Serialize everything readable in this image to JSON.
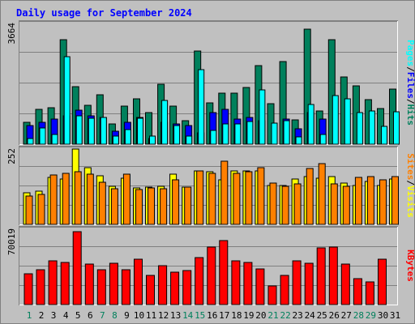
{
  "title": "Daily usage for September 2024",
  "colors": {
    "hits": "#00805c",
    "files": "#0000ff",
    "pages": "#00ffff",
    "visits": "#ffff00",
    "sites": "#ff8000",
    "kbytes": "#ff0000",
    "weekend": "#00805c",
    "weekday": "#000000",
    "panel": "#c0c0c0",
    "grid": "#808080"
  },
  "chart_data": [
    {
      "type": "bar",
      "panel": "hits-files-pages",
      "side_label": [
        "Pages",
        "/",
        "Files",
        "/",
        "Hits"
      ],
      "y_tick": "3664",
      "ylim": [
        0,
        3664
      ],
      "categories": [
        "1",
        "2",
        "3",
        "4",
        "5",
        "6",
        "7",
        "8",
        "9",
        "10",
        "11",
        "12",
        "13",
        "14",
        "15",
        "16",
        "17",
        "18",
        "19",
        "20",
        "21",
        "22",
        "23",
        "24",
        "25",
        "26",
        "27",
        "28",
        "29",
        "30",
        "31"
      ],
      "series": [
        {
          "name": "Hits",
          "values": [
            670,
            1050,
            1100,
            3150,
            1730,
            1180,
            1500,
            600,
            1150,
            1370,
            960,
            1800,
            1150,
            700,
            2800,
            1250,
            1550,
            1550,
            1700,
            2370,
            1210,
            2480,
            740,
            3480,
            1000,
            3150,
            2020,
            1770,
            1340,
            1070,
            1670
          ]
        },
        {
          "name": "Files",
          "values": [
            550,
            650,
            750,
            850,
            1030,
            850,
            800,
            400,
            650,
            800,
            160,
            650,
            600,
            550,
            350,
            950,
            1050,
            750,
            800,
            700,
            0,
            750,
            470,
            950,
            750,
            0,
            0,
            0,
            0,
            0,
            0
          ]
        },
        {
          "name": "Pages",
          "values": [
            160,
            480,
            300,
            2650,
            850,
            770,
            800,
            250,
            450,
            780,
            240,
            1320,
            550,
            250,
            2240,
            420,
            610,
            600,
            690,
            1640,
            630,
            700,
            210,
            1200,
            290,
            1460,
            1360,
            960,
            1000,
            540,
            970
          ]
        }
      ]
    },
    {
      "type": "bar",
      "panel": "visits-sites",
      "side_label": [
        "Sites",
        "/",
        "Visits"
      ],
      "y_tick": "252",
      "ylim": [
        0,
        252
      ],
      "categories": [
        "1",
        "2",
        "3",
        "4",
        "5",
        "6",
        "7",
        "8",
        "9",
        "10",
        "11",
        "12",
        "13",
        "14",
        "15",
        "16",
        "17",
        "18",
        "19",
        "20",
        "21",
        "22",
        "23",
        "24",
        "25",
        "26",
        "27",
        "28",
        "29",
        "30",
        "31"
      ],
      "series": [
        {
          "name": "Visits",
          "values": [
            105,
            110,
            155,
            150,
            248,
            187,
            160,
            125,
            153,
            120,
            123,
            127,
            165,
            123,
            177,
            173,
            147,
            177,
            177,
            177,
            130,
            130,
            150,
            157,
            153,
            157,
            137,
            130,
            143,
            130,
            150
          ]
        },
        {
          "name": "Sites",
          "values": [
            95,
            100,
            163,
            170,
            175,
            165,
            140,
            117,
            167,
            115,
            120,
            118,
            147,
            123,
            177,
            170,
            208,
            170,
            175,
            187,
            137,
            127,
            135,
            185,
            200,
            133,
            125,
            155,
            157,
            147,
            157
          ]
        }
      ]
    },
    {
      "type": "bar",
      "panel": "kbytes",
      "side_label": [
        "KBytes"
      ],
      "y_tick": "70019",
      "ylim": [
        0,
        70019
      ],
      "categories": [
        "1",
        "2",
        "3",
        "4",
        "5",
        "6",
        "7",
        "8",
        "9",
        "10",
        "11",
        "12",
        "13",
        "14",
        "15",
        "16",
        "17",
        "18",
        "19",
        "20",
        "21",
        "22",
        "23",
        "24",
        "25",
        "26",
        "27",
        "28",
        "29",
        "30",
        "31"
      ],
      "series": [
        {
          "name": "KBytes",
          "values": [
            28000,
            32000,
            40000,
            39000,
            67000,
            37000,
            32000,
            38000,
            32000,
            42000,
            27000,
            36000,
            30000,
            31000,
            43000,
            53000,
            59000,
            40000,
            39000,
            33000,
            17000,
            27000,
            40000,
            38000,
            52000,
            53000,
            37000,
            24000,
            21000,
            42000,
            0
          ]
        }
      ]
    }
  ],
  "days": [
    {
      "label": "1",
      "weekend": true
    },
    {
      "label": "2",
      "weekend": false
    },
    {
      "label": "3",
      "weekend": false
    },
    {
      "label": "4",
      "weekend": false
    },
    {
      "label": "5",
      "weekend": false
    },
    {
      "label": "6",
      "weekend": false
    },
    {
      "label": "7",
      "weekend": true
    },
    {
      "label": "8",
      "weekend": true
    },
    {
      "label": "9",
      "weekend": false
    },
    {
      "label": "10",
      "weekend": false
    },
    {
      "label": "11",
      "weekend": false
    },
    {
      "label": "12",
      "weekend": false
    },
    {
      "label": "13",
      "weekend": false
    },
    {
      "label": "14",
      "weekend": true
    },
    {
      "label": "15",
      "weekend": true
    },
    {
      "label": "16",
      "weekend": false
    },
    {
      "label": "17",
      "weekend": false
    },
    {
      "label": "18",
      "weekend": false
    },
    {
      "label": "19",
      "weekend": false
    },
    {
      "label": "20",
      "weekend": false
    },
    {
      "label": "21",
      "weekend": true
    },
    {
      "label": "22",
      "weekend": true
    },
    {
      "label": "23",
      "weekend": false
    },
    {
      "label": "24",
      "weekend": false
    },
    {
      "label": "25",
      "weekend": false
    },
    {
      "label": "26",
      "weekend": false
    },
    {
      "label": "27",
      "weekend": false
    },
    {
      "label": "28",
      "weekend": true
    },
    {
      "label": "29",
      "weekend": true
    },
    {
      "label": "30",
      "weekend": false
    },
    {
      "label": "31",
      "weekend": false
    }
  ]
}
